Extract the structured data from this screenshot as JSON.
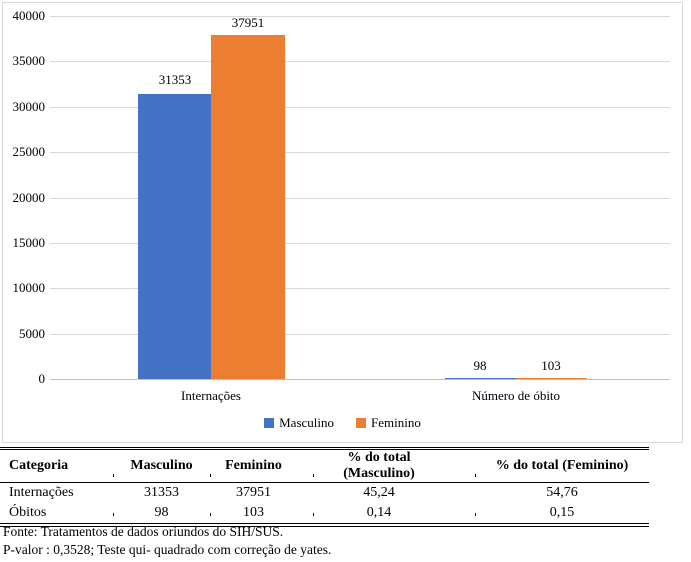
{
  "chart_data": {
    "type": "bar",
    "categories": [
      "Internações",
      "Número de óbito"
    ],
    "series": [
      {
        "name": "Masculino",
        "color": "#4472C4",
        "values": [
          31353,
          98
        ]
      },
      {
        "name": "Feminino",
        "color": "#ED7D31",
        "values": [
          37951,
          103
        ]
      }
    ],
    "ylim": [
      0,
      40000
    ],
    "ytick_step": 5000,
    "yticks": [
      "40000",
      "35000",
      "30000",
      "25000",
      "20000",
      "15000",
      "10000",
      "5000",
      "0"
    ],
    "grid": true,
    "legend_position": "bottom",
    "gridline_color": "#D9D9D9",
    "axis_line_color": "#BFBFBF"
  },
  "table": {
    "headers": [
      "Categoria",
      "Masculino",
      "Feminino",
      "% do total (Masculino)",
      "% do total (Feminino)"
    ],
    "rows": [
      [
        "Internações",
        "31353",
        "37951",
        "45,24",
        "54,76"
      ],
      [
        "Óbitos",
        "98",
        "103",
        "0,14",
        "0,15"
      ]
    ]
  },
  "notes": {
    "fonte": "Fonte: Tratamentos de dados oriundos do SIH/SUS.",
    "p_valor": "P-valor : 0,3528; Teste qui- quadrado com correção de yates."
  }
}
